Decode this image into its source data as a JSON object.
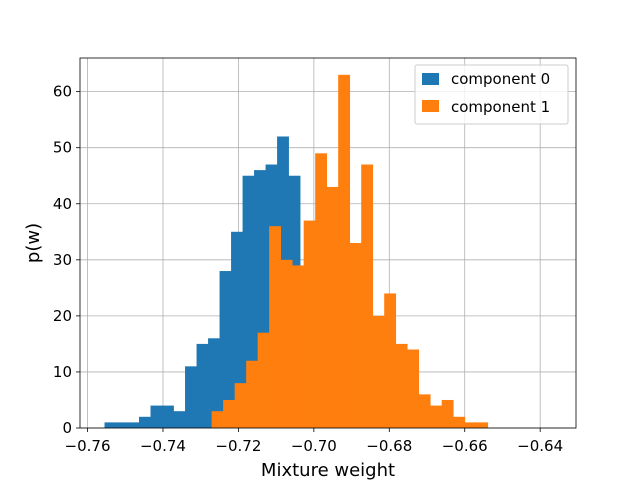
{
  "chart_data": {
    "type": "bar",
    "xlabel": "Mixture weight",
    "ylabel": "p(w)",
    "xlim": [
      -0.762,
      -0.6305
    ],
    "ylim": [
      0,
      66
    ],
    "grid": true,
    "legend_position": "top-right",
    "x_ticks": [
      {
        "value": -0.76,
        "label": "−0.76"
      },
      {
        "value": -0.74,
        "label": "−0.74"
      },
      {
        "value": -0.72,
        "label": "−0.72"
      },
      {
        "value": -0.7,
        "label": "−0.70"
      },
      {
        "value": -0.68,
        "label": "−0.68"
      },
      {
        "value": -0.66,
        "label": "−0.66"
      },
      {
        "value": -0.64,
        "label": "−0.64"
      }
    ],
    "y_ticks": [
      {
        "value": 0,
        "label": "0"
      },
      {
        "value": 10,
        "label": "10"
      },
      {
        "value": 20,
        "label": "20"
      },
      {
        "value": 30,
        "label": "30"
      },
      {
        "value": 40,
        "label": "40"
      },
      {
        "value": 50,
        "label": "50"
      },
      {
        "value": 60,
        "label": "60"
      }
    ],
    "series": [
      {
        "name": "component 0",
        "color": "#1f77b4",
        "bin_start": -0.7555,
        "bin_width": 0.00305,
        "counts": [
          1,
          1,
          1,
          2,
          4,
          4,
          3,
          11,
          15,
          16,
          28,
          35,
          45,
          46,
          47,
          52,
          45
        ]
      },
      {
        "name": "component 1",
        "color": "#ff7f0e",
        "bin_start": -0.7271,
        "bin_width": 0.00305,
        "counts": [
          3,
          5,
          8,
          12,
          17,
          36,
          30,
          29,
          37,
          49,
          43,
          63,
          33,
          47,
          20,
          24,
          15,
          14,
          6,
          4,
          5,
          2,
          1,
          1
        ]
      }
    ]
  }
}
